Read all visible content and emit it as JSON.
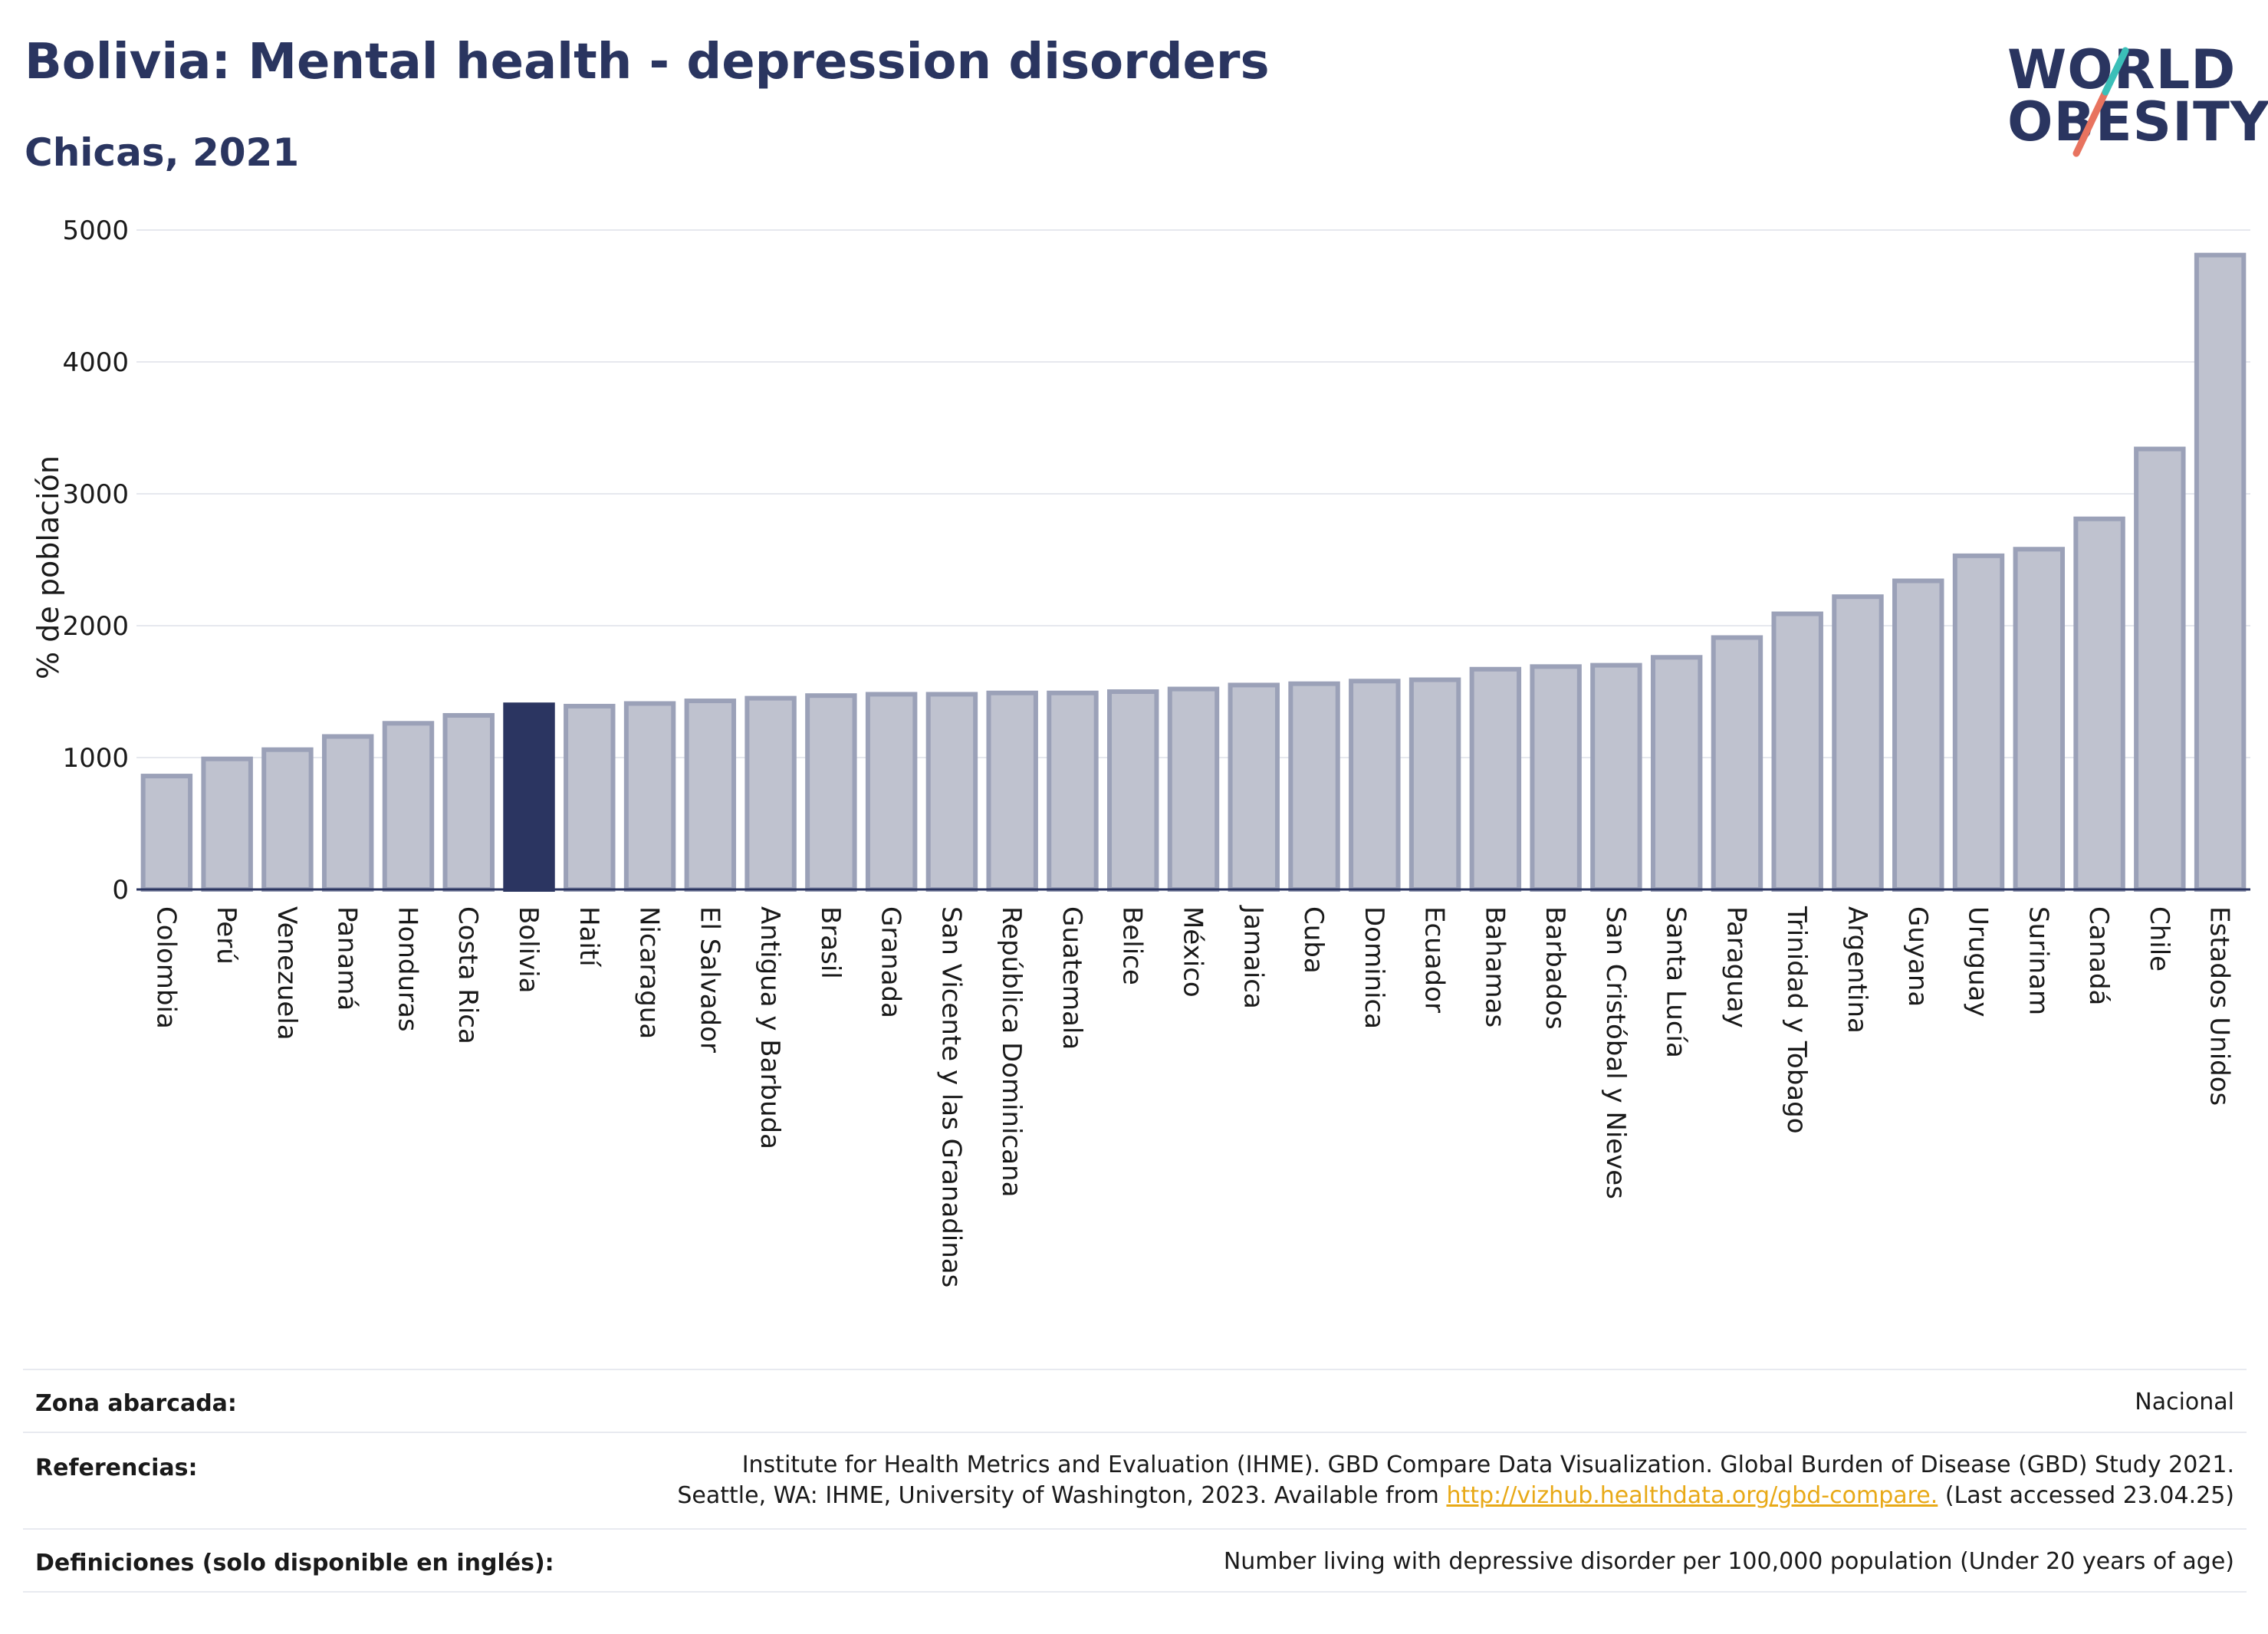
{
  "header": {
    "title": "Bolivia: Mental health - depression disorders",
    "subtitle": "Chicas, 2021"
  },
  "logo": {
    "line1": "WORLD",
    "line2": "OBESITY"
  },
  "colors": {
    "highlight": "#2b3561",
    "bar": "#bfc2cf",
    "bar_stroke": "#9ba1b8",
    "title": "#2a3560",
    "link": "#e8a917",
    "logo_teal": "#3bbfb8",
    "logo_coral": "#e8735f"
  },
  "chart_data": {
    "type": "bar",
    "ylabel": "% de población",
    "ylim": [
      0,
      5000
    ],
    "yticks": [
      0,
      1000,
      2000,
      3000,
      4000,
      5000
    ],
    "highlight": "Bolivia",
    "grid": true,
    "categories": [
      "Colombia",
      "Perú",
      "Venezuela",
      "Panamá",
      "Honduras",
      "Costa Rica",
      "Bolivia",
      "Haití",
      "Nicaragua",
      "El Salvador",
      "Antigua y Barbuda",
      "Brasil",
      "Granada",
      "San Vicente y las Granadinas",
      "República Dominicana",
      "Guatemala",
      "Belice",
      "México",
      "Jamaica",
      "Cuba",
      "Dominica",
      "Ecuador",
      "Bahamas",
      "Barbados",
      "San Cristóbal y Nieves",
      "Santa Lucía",
      "Paraguay",
      "Trinidad y Tobago",
      "Argentina",
      "Guyana",
      "Uruguay",
      "Surinam",
      "Canadá",
      "Chile",
      "Estados Unidos"
    ],
    "values": [
      860,
      990,
      1060,
      1160,
      1260,
      1320,
      1400,
      1390,
      1410,
      1430,
      1450,
      1470,
      1480,
      1480,
      1490,
      1490,
      1500,
      1520,
      1550,
      1560,
      1580,
      1590,
      1670,
      1690,
      1700,
      1760,
      1910,
      2090,
      2220,
      2340,
      2530,
      2580,
      2810,
      3340,
      4810
    ]
  },
  "footer": {
    "zona_label": "Zona abarcada:",
    "zona_value": "Nacional",
    "ref_label": "Referencias:",
    "ref_line1": "Institute for Health Metrics and Evaluation (IHME). GBD Compare Data Visualization. Global Burden of Disease (GBD) Study 2021.",
    "ref_line2_pre": "Seattle, WA: IHME, University of Washington, 2023. Available from ",
    "ref_link": "http://vizhub.healthdata.org/gbd-compare.",
    "ref_line2_post": " (Last accessed 23.04.25)",
    "def_label": "Definiciones (solo disponible en inglés):",
    "def_value": "Number living with depressive disorder per 100,000 population (Under 20 years of age)"
  }
}
